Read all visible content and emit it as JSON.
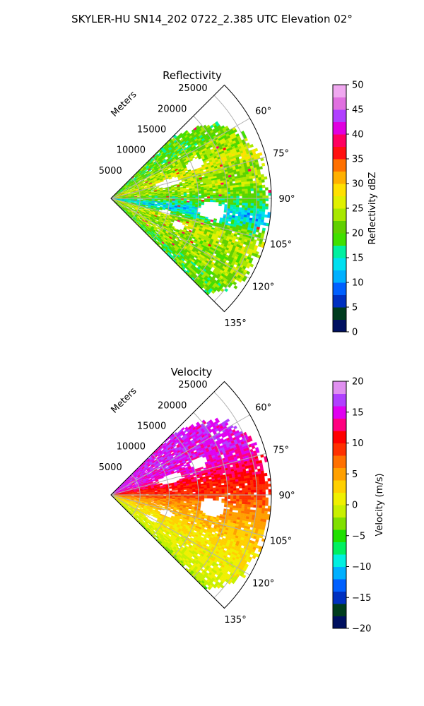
{
  "figure": {
    "title": "SKYLER-HU  SN14_202  0722_2.385 UTC Elevation 02°"
  },
  "chart_data": [
    {
      "type": "heatmap",
      "projection": "polar-sector",
      "title": "Reflectivity",
      "range_label": "Meters",
      "azimuth_range_deg": [
        45,
        135
      ],
      "range_max_m": 27500,
      "range_ticks": [
        5000,
        10000,
        15000,
        20000,
        25000
      ],
      "range_tick_labels": [
        "5000",
        "10000",
        "15000",
        "20000",
        "25000"
      ],
      "azimuth_ticks": [
        60,
        75,
        90,
        105,
        120,
        135
      ],
      "azimuth_tick_labels": [
        "60°",
        "75°",
        "90°",
        "105°",
        "120°",
        "135°"
      ],
      "grid": true,
      "colorbar": {
        "label": "Reflectivity dBZ",
        "range": [
          0,
          50
        ],
        "ticks": [
          0,
          5,
          10,
          15,
          20,
          25,
          30,
          35,
          40,
          45,
          50
        ],
        "tick_labels": [
          "0",
          "5",
          "10",
          "15",
          "20",
          "25",
          "30",
          "35",
          "40",
          "45",
          "50"
        ],
        "stops": [
          {
            "v": 0,
            "color": "#001060"
          },
          {
            "v": 2.5,
            "color": "#003c1e"
          },
          {
            "v": 5,
            "color": "#0030c0"
          },
          {
            "v": 7.5,
            "color": "#0060ff"
          },
          {
            "v": 10,
            "color": "#00b0ff"
          },
          {
            "v": 12.5,
            "color": "#00e0f0"
          },
          {
            "v": 15,
            "color": "#00f0a0"
          },
          {
            "v": 17.5,
            "color": "#40e000"
          },
          {
            "v": 20,
            "color": "#60d000"
          },
          {
            "v": 22.5,
            "color": "#a8e800"
          },
          {
            "v": 25,
            "color": "#e0f000"
          },
          {
            "v": 27.5,
            "color": "#ffe000"
          },
          {
            "v": 30,
            "color": "#ffb000"
          },
          {
            "v": 32.5,
            "color": "#ff7000"
          },
          {
            "v": 35,
            "color": "#ff1010"
          },
          {
            "v": 37.5,
            "color": "#ff0060"
          },
          {
            "v": 40,
            "color": "#e000e0"
          },
          {
            "v": 42.5,
            "color": "#b040ff"
          },
          {
            "v": 45,
            "color": "#e070e0"
          },
          {
            "v": 47.5,
            "color": "#f0a8f0"
          },
          {
            "v": 50,
            "color": "#ffe8ff"
          }
        ]
      },
      "field": {
        "base": 20,
        "spread": 4,
        "az_features": [
          {
            "az": 63,
            "width": 4,
            "delta": 3
          },
          {
            "az": 72,
            "width": 5,
            "delta": 6
          },
          {
            "az": 82,
            "width": 4,
            "delta": 4
          },
          {
            "az": 98,
            "width": 5,
            "delta": -7
          },
          {
            "az": 110,
            "width": 6,
            "delta": 5
          },
          {
            "az": 123,
            "width": 4,
            "delta": 4
          }
        ],
        "gaps": [
          {
            "az": 75,
            "r": 10000,
            "daz": 4,
            "dr": 2200
          },
          {
            "az": 68,
            "r": 15500,
            "daz": 3,
            "dr": 1500
          },
          {
            "az": 97,
            "r": 17500,
            "daz": 5,
            "dr": 2200
          },
          {
            "az": 104,
            "r": 9500,
            "daz": 2,
            "dr": 1000
          },
          {
            "az": 112,
            "r": 12500,
            "daz": 3,
            "dr": 1200
          }
        ],
        "edge_range_by_az": [
          [
            45,
            14500
          ],
          [
            55,
            22500
          ],
          [
            62,
            24500
          ],
          [
            75,
            26500
          ],
          [
            90,
            27000
          ],
          [
            105,
            27000
          ],
          [
            120,
            26500
          ],
          [
            130,
            25000
          ],
          [
            135,
            22500
          ]
        ]
      }
    },
    {
      "type": "heatmap",
      "projection": "polar-sector",
      "title": "Velocity",
      "range_label": "Meters",
      "azimuth_range_deg": [
        45,
        135
      ],
      "range_max_m": 27500,
      "range_ticks": [
        5000,
        10000,
        15000,
        20000,
        25000
      ],
      "range_tick_labels": [
        "5000",
        "10000",
        "15000",
        "20000",
        "25000"
      ],
      "azimuth_ticks": [
        60,
        75,
        90,
        105,
        120,
        135
      ],
      "azimuth_tick_labels": [
        "60°",
        "75°",
        "90°",
        "105°",
        "120°",
        "135°"
      ],
      "grid": true,
      "colorbar": {
        "label": "Velocity (m/s)",
        "range": [
          -20,
          20
        ],
        "ticks": [
          -20,
          -15,
          -10,
          -5,
          0,
          5,
          10,
          15,
          20
        ],
        "tick_labels": [
          "−20",
          "−15",
          "−10",
          "−5",
          "0",
          "5",
          "10",
          "15",
          "20"
        ],
        "stops": [
          {
            "v": -20,
            "color": "#001060"
          },
          {
            "v": -18,
            "color": "#003c1e"
          },
          {
            "v": -16,
            "color": "#0030c0"
          },
          {
            "v": -14,
            "color": "#0060ff"
          },
          {
            "v": -12,
            "color": "#00b0ff"
          },
          {
            "v": -10,
            "color": "#00f0e0"
          },
          {
            "v": -8,
            "color": "#00f060"
          },
          {
            "v": -6,
            "color": "#20e000"
          },
          {
            "v": -4,
            "color": "#80e000"
          },
          {
            "v": -2,
            "color": "#c8f000"
          },
          {
            "v": 0,
            "color": "#f0f000"
          },
          {
            "v": 2,
            "color": "#ffd000"
          },
          {
            "v": 4,
            "color": "#ffa000"
          },
          {
            "v": 6,
            "color": "#ff7000"
          },
          {
            "v": 8,
            "color": "#ff3000"
          },
          {
            "v": 10,
            "color": "#ff0000"
          },
          {
            "v": 12,
            "color": "#ff0080"
          },
          {
            "v": 14,
            "color": "#e000f0"
          },
          {
            "v": 16,
            "color": "#b040ff"
          },
          {
            "v": 18,
            "color": "#e090f0"
          },
          {
            "v": 20,
            "color": "#ffe8ff"
          }
        ]
      },
      "field": {
        "az_profile": [
          [
            45,
            15
          ],
          [
            60,
            15
          ],
          [
            70,
            14.5
          ],
          [
            78,
            12.5
          ],
          [
            85,
            10
          ],
          [
            90,
            9
          ],
          [
            96,
            6
          ],
          [
            105,
            4
          ],
          [
            115,
            2
          ],
          [
            125,
            0.5
          ],
          [
            132,
            -0.5
          ],
          [
            135,
            -3
          ]
        ],
        "spread": 1.5,
        "gaps": [
          {
            "az": 75,
            "r": 10500,
            "daz": 4,
            "dr": 2200
          },
          {
            "az": 70,
            "r": 16000,
            "daz": 3,
            "dr": 1500
          },
          {
            "az": 97,
            "r": 17500,
            "daz": 5,
            "dr": 2200
          },
          {
            "az": 108,
            "r": 10000,
            "daz": 3,
            "dr": 1400
          },
          {
            "az": 120,
            "r": 8000,
            "daz": 3,
            "dr": 1200
          }
        ],
        "edge_range_by_az": [
          [
            45,
            14500
          ],
          [
            55,
            22500
          ],
          [
            62,
            24500
          ],
          [
            75,
            26500
          ],
          [
            90,
            27000
          ],
          [
            105,
            27000
          ],
          [
            120,
            26500
          ],
          [
            130,
            25000
          ],
          [
            135,
            22500
          ]
        ]
      }
    }
  ]
}
